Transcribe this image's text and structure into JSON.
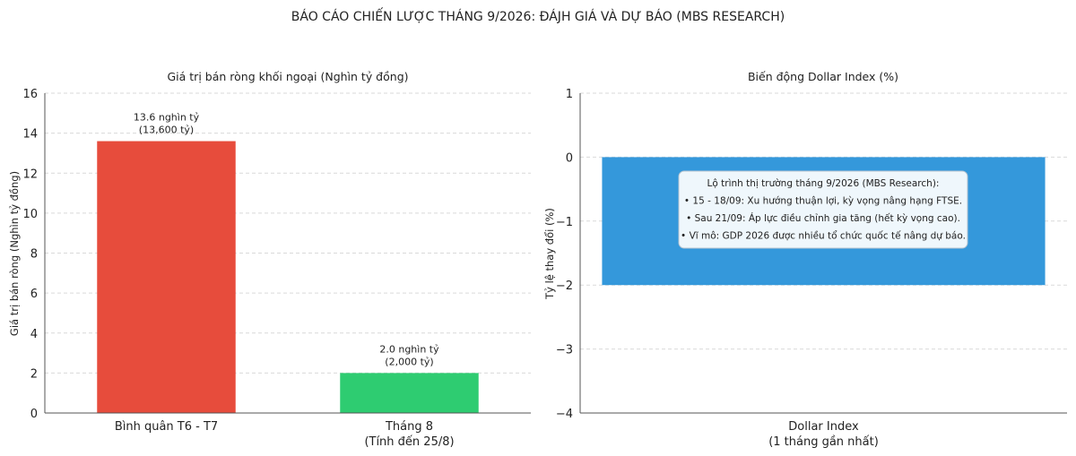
{
  "page": {
    "title": "BÁO CÁO CHIẾN LƯỢC THÁNG 9/2026: ĐÁJH GIÁ VÀ DỰ BÁO (MBS RESEARCH)"
  },
  "chart_data": [
    {
      "type": "bar",
      "title": "Giá trị bán ròng khối ngoại (Nghìn tỷ đồng)",
      "ylabel": "Giá trị bán ròng (Nghìn tỷ đồng)",
      "xlabel": "",
      "ylim": [
        0,
        16
      ],
      "yticks": [
        "0",
        "2",
        "4",
        "6",
        "8",
        "10",
        "12",
        "14",
        "16"
      ],
      "grid": true,
      "categories": [
        [
          "Bình quân T6 - T7"
        ],
        [
          "Tháng 8",
          "(Tính đến 25/8)"
        ]
      ],
      "values": [
        13.6,
        2.0
      ],
      "data_labels": [
        [
          "13.6 nghìn tỷ",
          "(13,600 tỷ)"
        ],
        [
          "2.0 nghìn tỷ",
          "(2,000 tỷ)"
        ]
      ],
      "colors": [
        "#e74c3c",
        "#2ecc71"
      ]
    },
    {
      "type": "bar",
      "title": "Biến động Dollar Index (%)",
      "ylabel": "Tỷ lệ thay đổi (%)",
      "xlabel": "",
      "ylim": [
        -4,
        1
      ],
      "yticks": [
        "−4",
        "−3",
        "−2",
        "−1",
        "0",
        "1"
      ],
      "grid": true,
      "categories": [
        [
          "Dollar Index",
          "(1 tháng gần nhất)"
        ]
      ],
      "values": [
        -2.0
      ],
      "colors": [
        "#3498db"
      ],
      "annotation": [
        "Lộ trình thị trường tháng 9/2026 (MBS Research):",
        "• 15 - 18/09: Xu hướng thuận lợi, kỳ vọng nâng hạng FTSE.",
        "• Sau 21/09: Áp lực điều chỉnh gia tăng (hết kỳ vọng cao).",
        "• Vĩ mô: GDP 2026 được nhiều tổ chức quốc tế nâng dự báo."
      ]
    }
  ]
}
